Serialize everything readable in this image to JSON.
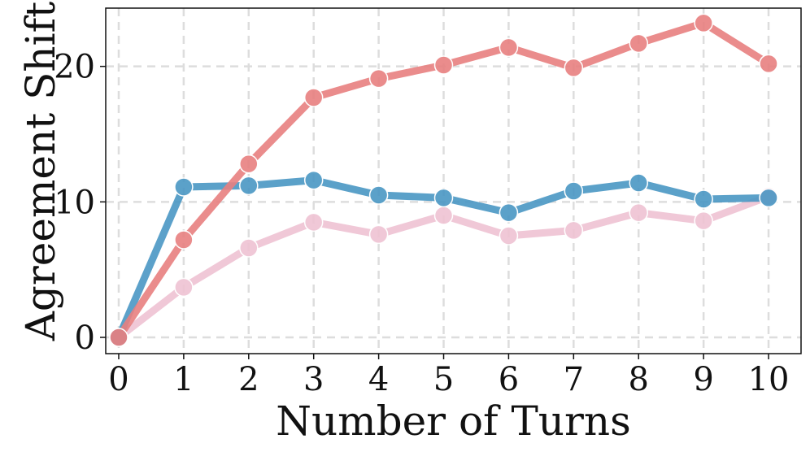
{
  "chart_data": {
    "type": "line",
    "xlabel": "Number of Turns",
    "ylabel": "Agreement Shift",
    "x": [
      0,
      1,
      2,
      3,
      4,
      5,
      6,
      7,
      8,
      9,
      10
    ],
    "xlim": [
      -0.2,
      10.5
    ],
    "ylim": [
      -1.2,
      24.3
    ],
    "xticks": [
      0,
      1,
      2,
      3,
      4,
      5,
      6,
      7,
      8,
      9,
      10
    ],
    "yticks": [
      0,
      10,
      20
    ],
    "grid": true,
    "series": [
      {
        "color": "#E88080",
        "values": [
          0,
          7.2,
          12.8,
          17.7,
          19.1,
          20.1,
          21.4,
          19.9,
          21.7,
          23.2,
          20.2
        ]
      },
      {
        "color": "#4A97C4",
        "values": [
          0,
          11.1,
          11.2,
          11.6,
          10.5,
          10.3,
          9.2,
          10.8,
          11.4,
          10.2,
          10.3
        ]
      },
      {
        "color": "#EFC3D3",
        "values": [
          0,
          3.7,
          6.6,
          8.5,
          7.6,
          9.0,
          7.5,
          7.9,
          9.2,
          8.6,
          10.4
        ]
      }
    ]
  }
}
